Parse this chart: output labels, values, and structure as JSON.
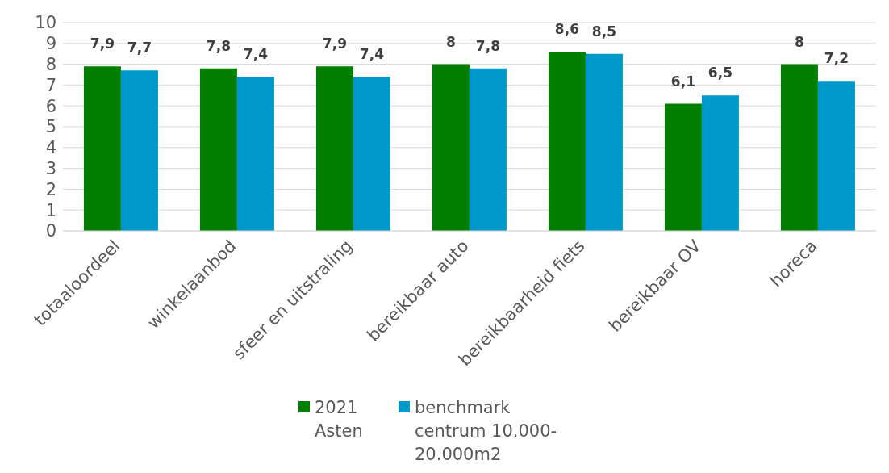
{
  "chart_data": {
    "type": "bar",
    "categories": [
      "totaaloordeel",
      "winkelaanbod",
      "sfeer en uitstraling",
      "bereikbaar auto",
      "bereikbaarheid fiets",
      "bereikbaar OV",
      "horeca"
    ],
    "series": [
      {
        "name": "2021 Asten",
        "color": "#007f00",
        "values": [
          7.9,
          7.8,
          7.9,
          8,
          8.6,
          6.1,
          8
        ],
        "value_labels": [
          "7,9",
          "7,8",
          "7,9",
          "8",
          "8,6",
          "6,1",
          "8"
        ]
      },
      {
        "name": "benchmark centrum 10.000-20.000m2",
        "color": "#0099cc",
        "values": [
          7.7,
          7.4,
          7.4,
          7.8,
          8.5,
          6.5,
          7.2
        ],
        "value_labels": [
          "7,7",
          "7,4",
          "7,4",
          "7,8",
          "8,5",
          "6,5",
          "7,2"
        ]
      }
    ],
    "ylim": [
      0,
      10
    ],
    "yticks": [
      0,
      1,
      2,
      3,
      4,
      5,
      6,
      7,
      8,
      9,
      10
    ],
    "grid": "y",
    "legend": "bottom"
  }
}
